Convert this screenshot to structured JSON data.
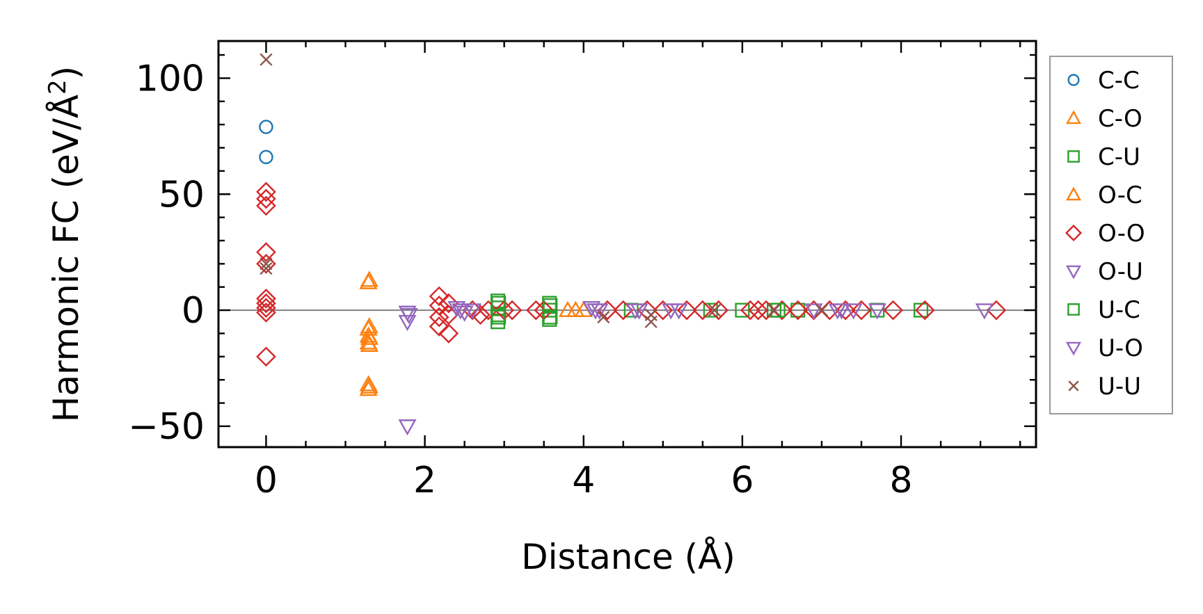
{
  "chart_data": {
    "type": "scatter",
    "xlabel": "Distance (Å)",
    "ylabel_main": "Harmonic FC (eV/Å",
    "ylabel_sup": "2",
    "ylabel_tail": ")",
    "xlim": [
      -0.6,
      9.7
    ],
    "ylim": [
      -59,
      116
    ],
    "xticks": [
      0,
      2,
      4,
      6,
      8
    ],
    "xtick_labels": [
      "0",
      "2",
      "4",
      "6",
      "8"
    ],
    "yticks": [
      -50,
      0,
      50,
      100
    ],
    "ytick_labels": [
      "−50",
      "0",
      "50",
      "100"
    ],
    "zero_line": true,
    "legend_position": "right-outside",
    "series": [
      {
        "name": "C-C",
        "marker": "circle",
        "color": "#1f77b4",
        "points": [
          [
            0,
            79
          ],
          [
            0,
            66
          ]
        ]
      },
      {
        "name": "C-O",
        "marker": "triangle-up",
        "color": "#ff7f0e",
        "points": [
          [
            1.29,
            12
          ],
          [
            1.29,
            -8
          ],
          [
            1.29,
            -11
          ],
          [
            1.29,
            -14
          ],
          [
            1.29,
            -32
          ],
          [
            1.29,
            -34
          ],
          [
            3.8,
            0
          ],
          [
            4.0,
            0
          ]
        ]
      },
      {
        "name": "C-U",
        "marker": "square",
        "color": "#2ca02c",
        "points": [
          [
            2.92,
            4
          ],
          [
            2.92,
            1
          ],
          [
            2.92,
            -2
          ],
          [
            2.92,
            -5
          ],
          [
            3.57,
            3
          ],
          [
            3.57,
            0
          ],
          [
            3.57,
            -4
          ],
          [
            4.6,
            0
          ],
          [
            5.6,
            0
          ],
          [
            6.0,
            0
          ],
          [
            6.4,
            0
          ],
          [
            6.7,
            0
          ],
          [
            7.7,
            0
          ],
          [
            8.25,
            0
          ]
        ]
      },
      {
        "name": "O-C",
        "marker": "triangle-up",
        "color": "#ff7f0e",
        "points": [
          [
            1.3,
            13
          ],
          [
            1.3,
            -7
          ],
          [
            1.3,
            -12
          ],
          [
            1.3,
            -15
          ],
          [
            1.3,
            -33
          ],
          [
            3.9,
            0
          ]
        ]
      },
      {
        "name": "O-O",
        "marker": "diamond",
        "color": "#d62728",
        "points": [
          [
            0,
            51
          ],
          [
            0,
            48
          ],
          [
            0,
            45
          ],
          [
            0,
            25
          ],
          [
            0,
            20
          ],
          [
            0,
            5
          ],
          [
            0,
            3
          ],
          [
            0,
            1
          ],
          [
            0,
            -1
          ],
          [
            0,
            -20
          ],
          [
            2.18,
            6
          ],
          [
            2.18,
            2
          ],
          [
            2.18,
            -3
          ],
          [
            2.18,
            -7
          ],
          [
            2.3,
            3
          ],
          [
            2.3,
            -2
          ],
          [
            2.3,
            -10
          ],
          [
            2.6,
            0
          ],
          [
            2.7,
            -2
          ],
          [
            2.8,
            0
          ],
          [
            3.0,
            0
          ],
          [
            3.1,
            0
          ],
          [
            3.4,
            0
          ],
          [
            3.5,
            0
          ],
          [
            4.3,
            0
          ],
          [
            4.5,
            0
          ],
          [
            4.8,
            0
          ],
          [
            5.0,
            0
          ],
          [
            5.3,
            0
          ],
          [
            5.5,
            0
          ],
          [
            5.7,
            0
          ],
          [
            6.1,
            0
          ],
          [
            6.2,
            0
          ],
          [
            6.3,
            0
          ],
          [
            6.5,
            0
          ],
          [
            6.7,
            0
          ],
          [
            6.9,
            0
          ],
          [
            7.1,
            0
          ],
          [
            7.3,
            0
          ],
          [
            7.5,
            0
          ],
          [
            7.9,
            0
          ],
          [
            8.3,
            0
          ],
          [
            9.2,
            0
          ]
        ]
      },
      {
        "name": "O-U",
        "marker": "triangle-down",
        "color": "#9467bd",
        "points": [
          [
            1.78,
            -1
          ],
          [
            1.78,
            -5
          ],
          [
            1.78,
            -50
          ],
          [
            2.4,
            1
          ],
          [
            2.5,
            -1
          ],
          [
            2.6,
            0
          ],
          [
            4.1,
            1
          ],
          [
            4.2,
            0
          ],
          [
            4.7,
            0
          ],
          [
            5.2,
            0
          ],
          [
            6.9,
            0
          ],
          [
            7.2,
            0
          ],
          [
            7.4,
            0
          ],
          [
            7.7,
            0
          ],
          [
            9.05,
            0
          ]
        ]
      },
      {
        "name": "U-C",
        "marker": "square",
        "color": "#2ca02c",
        "points": [
          [
            2.93,
            3
          ],
          [
            2.93,
            -3
          ],
          [
            3.58,
            2
          ],
          [
            3.58,
            -3
          ],
          [
            6.45,
            0
          ]
        ]
      },
      {
        "name": "U-O",
        "marker": "triangle-down",
        "color": "#9467bd",
        "points": [
          [
            1.8,
            -2
          ],
          [
            2.45,
            0
          ],
          [
            4.15,
            0
          ],
          [
            4.65,
            0
          ],
          [
            5.1,
            0
          ],
          [
            7.25,
            0
          ]
        ]
      },
      {
        "name": "U-U",
        "marker": "x",
        "color": "#8c564b",
        "points": [
          [
            0,
            108
          ],
          [
            0,
            20
          ],
          [
            0,
            18
          ],
          [
            4.25,
            -3
          ],
          [
            4.85,
            -2
          ],
          [
            4.85,
            -5
          ],
          [
            5.65,
            0
          ],
          [
            6.4,
            0
          ],
          [
            7.0,
            0
          ]
        ]
      }
    ]
  }
}
